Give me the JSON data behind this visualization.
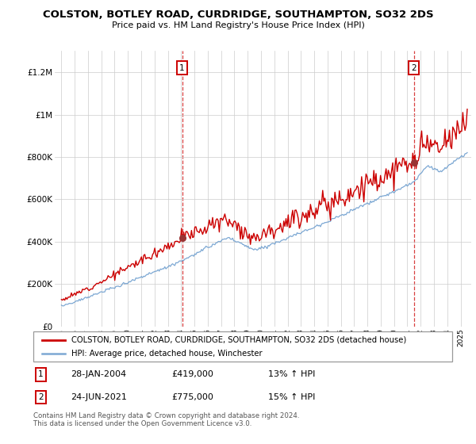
{
  "title": "COLSTON, BOTLEY ROAD, CURDRIDGE, SOUTHAMPTON, SO32 2DS",
  "subtitle": "Price paid vs. HM Land Registry's House Price Index (HPI)",
  "legend_line1": "COLSTON, BOTLEY ROAD, CURDRIDGE, SOUTHAMPTON, SO32 2DS (detached house)",
  "legend_line2": "HPI: Average price, detached house, Winchester",
  "sale1_label": "1",
  "sale2_label": "2",
  "sale1_date": "28-JAN-2004",
  "sale1_price": "£419,000",
  "sale1_hpi": "13% ↑ HPI",
  "sale2_date": "24-JUN-2021",
  "sale2_price": "£775,000",
  "sale2_hpi": "15% ↑ HPI",
  "footnote": "Contains HM Land Registry data © Crown copyright and database right 2024.\nThis data is licensed under the Open Government Licence v3.0.",
  "red_color": "#cc0000",
  "blue_color": "#6699cc",
  "sale1_x": 2004.07,
  "sale2_x": 2021.48,
  "sale1_y": 419000,
  "sale2_y": 775000,
  "ylim": [
    0,
    1300000
  ],
  "xlim": [
    1994.5,
    2025.8
  ],
  "yticks": [
    0,
    200000,
    400000,
    600000,
    800000,
    1000000,
    1200000
  ],
  "ylabels": [
    "£0",
    "£200K",
    "£400K",
    "£600K",
    "£800K",
    "£1M",
    "£1.2M"
  ],
  "xtick_start": 1995,
  "xtick_end": 2025
}
